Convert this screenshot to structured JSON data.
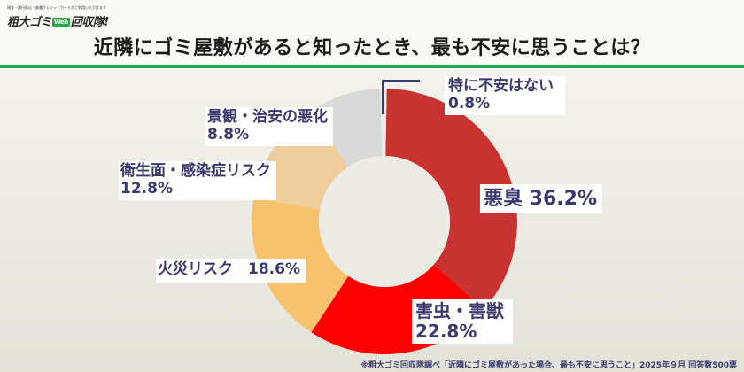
{
  "header": {
    "logo_tagline": "現金・銀行振込・各種クレジットカードがご利用いただけます",
    "logo_text_a": "粗大ゴミ",
    "logo_badge": "Web",
    "logo_text_b": "回収隊!",
    "title": "近隣にゴミ屋敷があると知ったとき、最も不安に思うことは？",
    "accent_color": "#1fa84a"
  },
  "labels": {
    "bad_smell": "悪臭 36.2%",
    "pests_line1": "害虫・害獣",
    "pests_line2": "22.8%",
    "fire": "火災リスク　18.6%",
    "hygiene_line1": "衛生面・感染症リスク",
    "hygiene_line2": "12.8%",
    "landscape_line1": "景観・治安の悪化",
    "landscape_line2": "8.8%",
    "none_line1": "特に不安はない",
    "none_line2": "0.8%"
  },
  "footnote": "※粗大ゴミ回収隊調べ「近隣にゴミ屋敷があった場合、最も不安に思うこと」2025年９月 回答数500票",
  "chart_data": {
    "type": "pie",
    "donut": true,
    "title": "近隣にゴミ屋敷があると知ったとき、最も不安に思うことは？",
    "categories": [
      "悪臭",
      "害虫・害獣",
      "火災リスク",
      "衛生面・感染症リスク",
      "景観・治安の悪化",
      "特に不安はない"
    ],
    "values": [
      36.2,
      22.8,
      18.6,
      12.8,
      8.8,
      0.8
    ],
    "unit": "%",
    "colors": [
      "#c9332f",
      "#ff0000",
      "#f7c26d",
      "#f0cd9c",
      "#d9d9d9",
      "#ecebe4"
    ],
    "start_angle_deg": 1,
    "direction": "clockwise",
    "annotation": "※粗大ゴミ回収隊調べ「近隣にゴミ屋敷があった場合、最も不安に思うこと」2025年９月 回答数500票",
    "sample_size": 500
  }
}
